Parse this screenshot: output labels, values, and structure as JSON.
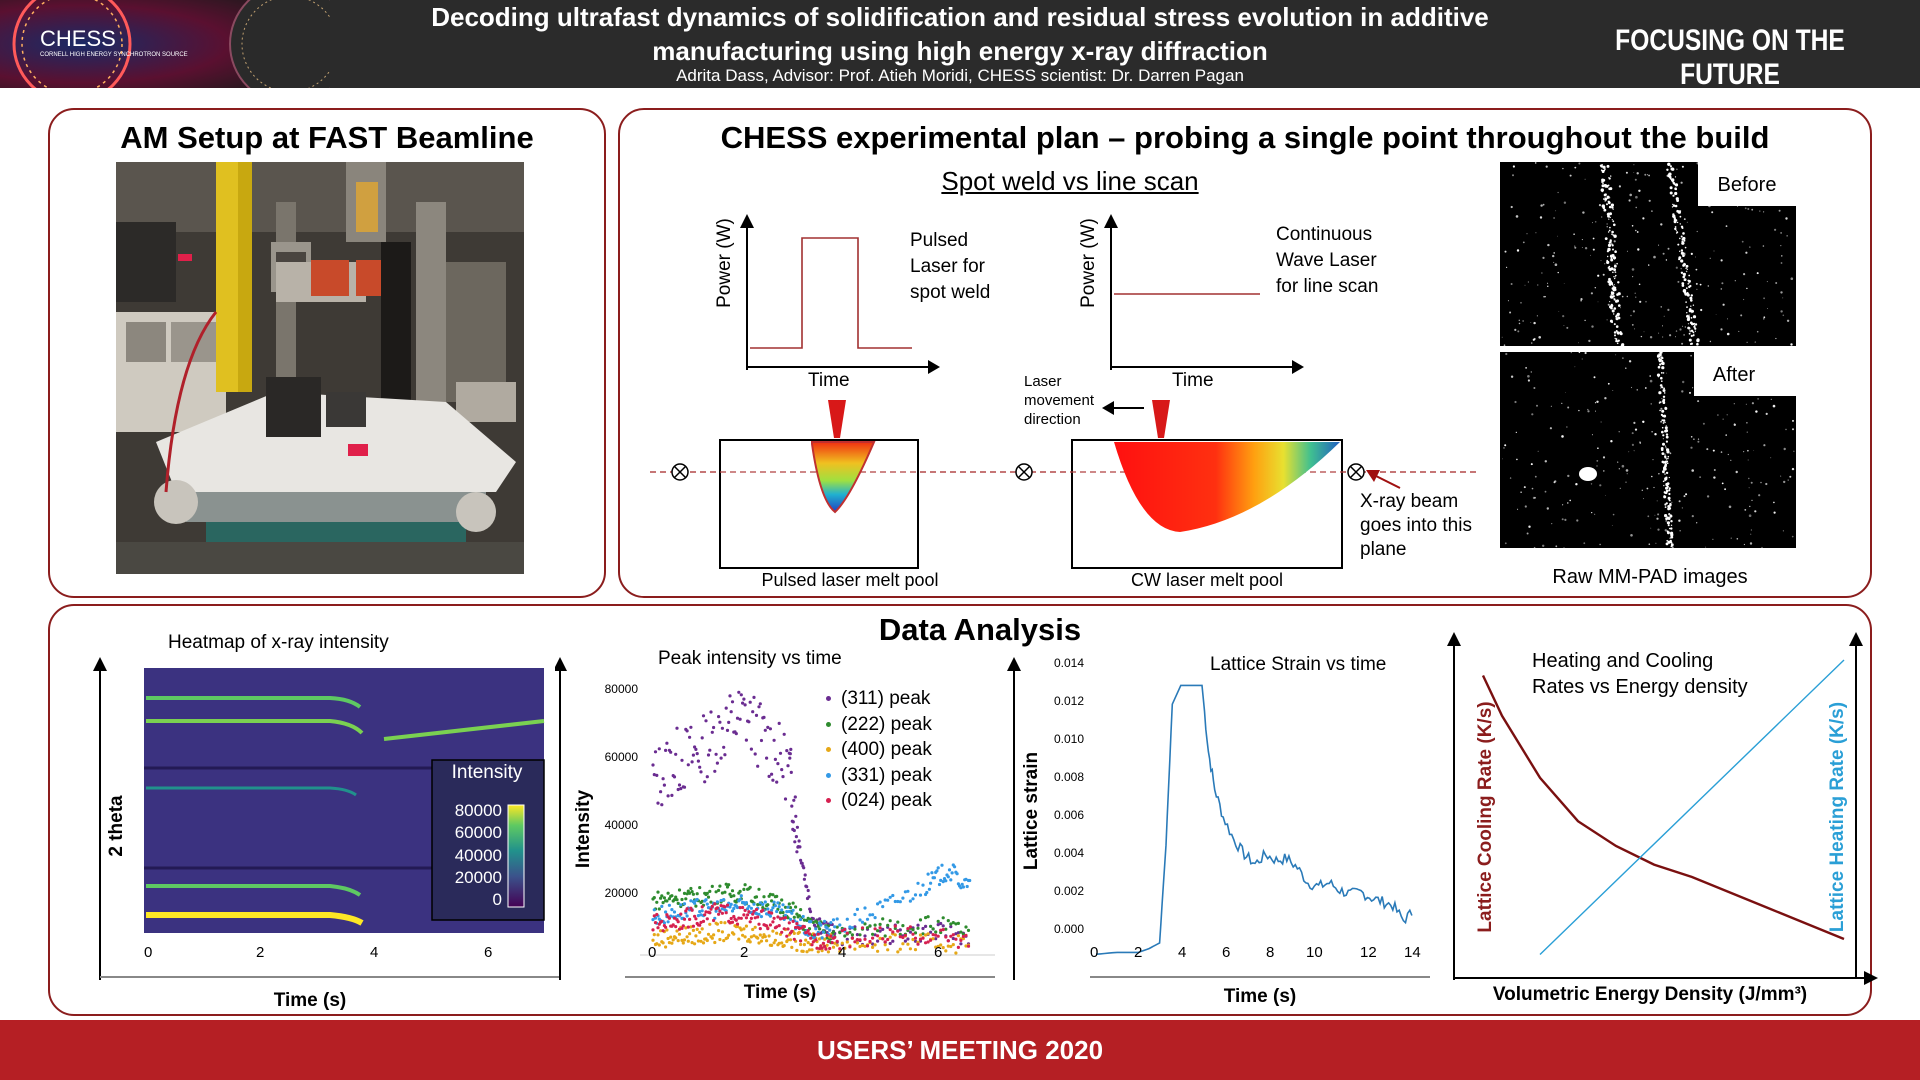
{
  "header": {
    "logo_text": "CHESS",
    "logo_subtext": "CORNELL HIGH ENERGY SYNCHROTRON SOURCE",
    "title_line1": "Decoding ultrafast dynamics of solidification and residual stress evolution in additive",
    "title_line2": "manufacturing using high energy x-ray diffraction",
    "authors": "Adrita Dass, Advisor: Prof. Atieh Moridi, CHESS scientist: Dr. Darren Pagan",
    "tagline": "FOCUSING ON THE FUTURE"
  },
  "panel_setup": {
    "title": "AM Setup at FAST Beamline"
  },
  "panel_plan": {
    "title": "CHESS experimental plan – probing a single point throughout the build",
    "subtitle": "Spot weld vs line scan",
    "pulsed": {
      "label_line1": "Pulsed",
      "label_line2": "Laser for",
      "label_line3": "spot weld",
      "ylabel": "Power (W)",
      "xlabel": "Time",
      "caption": "Pulsed laser melt pool"
    },
    "cw": {
      "label_line1": "Continuous",
      "label_line2": "Wave Laser",
      "label_line3": "for line scan",
      "ylabel": "Power (W)",
      "xlabel": "Time",
      "caption": "CW laser melt pool"
    },
    "laser_dir_line1": "Laser",
    "laser_dir_line2": "movement",
    "laser_dir_line3": "direction",
    "xray_line1": "X-ray beam",
    "xray_line2": "goes into this",
    "xray_line3": "plane",
    "before_label": "Before",
    "after_label": "After",
    "images_caption": "Raw MM-PAD images"
  },
  "panel_analysis": {
    "title": "Data Analysis",
    "heatmap": {
      "title": "Heatmap of x-ray intensity",
      "ylabel": "2 theta",
      "xlabel": "Time (s)",
      "xticks": [
        "0",
        "2",
        "4",
        "6"
      ],
      "legend_title": "Intensity",
      "legend_ticks": [
        "80000",
        "60000",
        "40000",
        "20000",
        "0"
      ]
    },
    "peak": {
      "title": "Peak intensity vs time",
      "ylabel": "Intensity",
      "xlabel": "Time (s)",
      "xticks": [
        "0",
        "2",
        "4",
        "6"
      ],
      "yticks": [
        "80000",
        "60000",
        "40000",
        "20000"
      ],
      "legend": [
        {
          "name": "(311) peak",
          "color": "#6a2c91"
        },
        {
          "name": "(222) peak",
          "color": "#2e8b2e"
        },
        {
          "name": "(400) peak",
          "color": "#e6a817"
        },
        {
          "name": "(331) peak",
          "color": "#3399e6"
        },
        {
          "name": "(024) peak",
          "color": "#d62050"
        }
      ]
    },
    "strain": {
      "title": "Lattice Strain vs time",
      "ylabel": "Lattice strain",
      "xlabel": "Time (s)",
      "xticks": [
        "0",
        "2",
        "4",
        "6",
        "8",
        "10",
        "12",
        "14"
      ],
      "yticks": [
        "0.014",
        "0.012",
        "0.010",
        "0.008",
        "0.006",
        "0.004",
        "0.002",
        "0.000"
      ]
    },
    "rates": {
      "title_line1": "Heating and Cooling",
      "title_line2": "Rates vs Energy density",
      "ylabel_left": "Lattice Cooling Rate (K/s)",
      "ylabel_right": "Lattice Heating Rate (K/s)",
      "xlabel": "Volumetric Energy Density (J/mm³)",
      "cooling_color": "#7a1010",
      "heating_color": "#2a9fd6"
    }
  },
  "footer": {
    "text": "USERS’ MEETING 2020"
  },
  "chart_data": [
    {
      "type": "scatter",
      "title": "Peak intensity vs time",
      "xlabel": "Time (s)",
      "ylabel": "Intensity",
      "xlim": [
        0,
        7
      ],
      "ylim": [
        10000,
        85000
      ],
      "series": [
        {
          "name": "(311) peak",
          "x": [
            0,
            0.5,
            1,
            1.5,
            2,
            2.5,
            3,
            3.2,
            3.5,
            4,
            5,
            6,
            7
          ],
          "values": [
            55000,
            60000,
            62000,
            68000,
            72000,
            65000,
            58000,
            40000,
            20000,
            15000,
            15000,
            16000,
            15000
          ]
        },
        {
          "name": "(222) peak",
          "x": [
            0,
            0.5,
            1,
            1.5,
            2,
            2.5,
            3,
            3.5,
            4,
            5,
            6,
            7
          ],
          "values": [
            24000,
            25000,
            25000,
            26000,
            26000,
            24000,
            22000,
            17000,
            15000,
            17000,
            18000,
            16000
          ]
        },
        {
          "name": "(400) peak",
          "x": [
            0,
            0.5,
            1,
            1.5,
            2,
            2.5,
            3,
            3.5,
            4,
            5,
            6,
            7
          ],
          "values": [
            14000,
            15000,
            15000,
            16000,
            16000,
            15000,
            14000,
            13000,
            13000,
            13000,
            13000,
            13000
          ]
        },
        {
          "name": "(331) peak",
          "x": [
            0,
            0.5,
            1,
            1.5,
            2,
            2.5,
            3,
            3.5,
            4,
            5,
            6,
            6.5,
            7
          ],
          "values": [
            20000,
            21000,
            22000,
            22000,
            23000,
            22000,
            20000,
            16000,
            17000,
            22000,
            28000,
            32000,
            27000
          ]
        },
        {
          "name": "(024) peak",
          "x": [
            0,
            0.5,
            1,
            1.5,
            2,
            2.5,
            3,
            3.5,
            4,
            5,
            6,
            7
          ],
          "values": [
            18000,
            19000,
            20000,
            21000,
            20000,
            19000,
            17000,
            14000,
            14000,
            15000,
            15000,
            14000
          ]
        }
      ]
    },
    {
      "type": "line",
      "title": "Lattice Strain vs time",
      "xlabel": "Time (s)",
      "ylabel": "Lattice strain",
      "xlim": [
        0,
        15
      ],
      "ylim": [
        0,
        0.015
      ],
      "x": [
        0,
        1,
        2,
        2.5,
        3,
        3.3,
        3.6,
        4,
        4.5,
        5,
        5.3,
        5.6,
        6,
        6.5,
        7,
        7.5,
        8,
        8.5,
        9,
        9.5,
        10,
        10.5,
        11,
        11.5,
        12,
        12.5,
        13,
        13.5,
        14,
        14.5,
        15
      ],
      "values": [
        0.0002,
        0.0003,
        0.0003,
        0.0005,
        0.0008,
        0.006,
        0.0135,
        0.0145,
        0.0145,
        0.0145,
        0.011,
        0.009,
        0.0075,
        0.0063,
        0.0055,
        0.005,
        0.0055,
        0.0052,
        0.0053,
        0.0048,
        0.004,
        0.0038,
        0.004,
        0.0036,
        0.0034,
        0.0035,
        0.0032,
        0.003,
        0.0028,
        0.002,
        0.0025
      ]
    },
    {
      "type": "line",
      "title": "Heating and Cooling Rates vs Energy density",
      "xlabel": "Volumetric Energy Density (J/mm³)",
      "series": [
        {
          "name": "Lattice Cooling Rate (K/s)",
          "x": [
            0.05,
            0.1,
            0.2,
            0.3,
            0.4,
            0.5,
            0.6,
            0.7,
            0.8,
            0.9,
            1.0
          ],
          "values": [
            0.95,
            0.82,
            0.62,
            0.48,
            0.4,
            0.34,
            0.3,
            0.25,
            0.2,
            0.15,
            0.1
          ]
        },
        {
          "name": "Lattice Heating Rate (K/s)",
          "x": [
            0.2,
            1.0
          ],
          "values": [
            0.05,
            1.0
          ]
        }
      ]
    }
  ]
}
